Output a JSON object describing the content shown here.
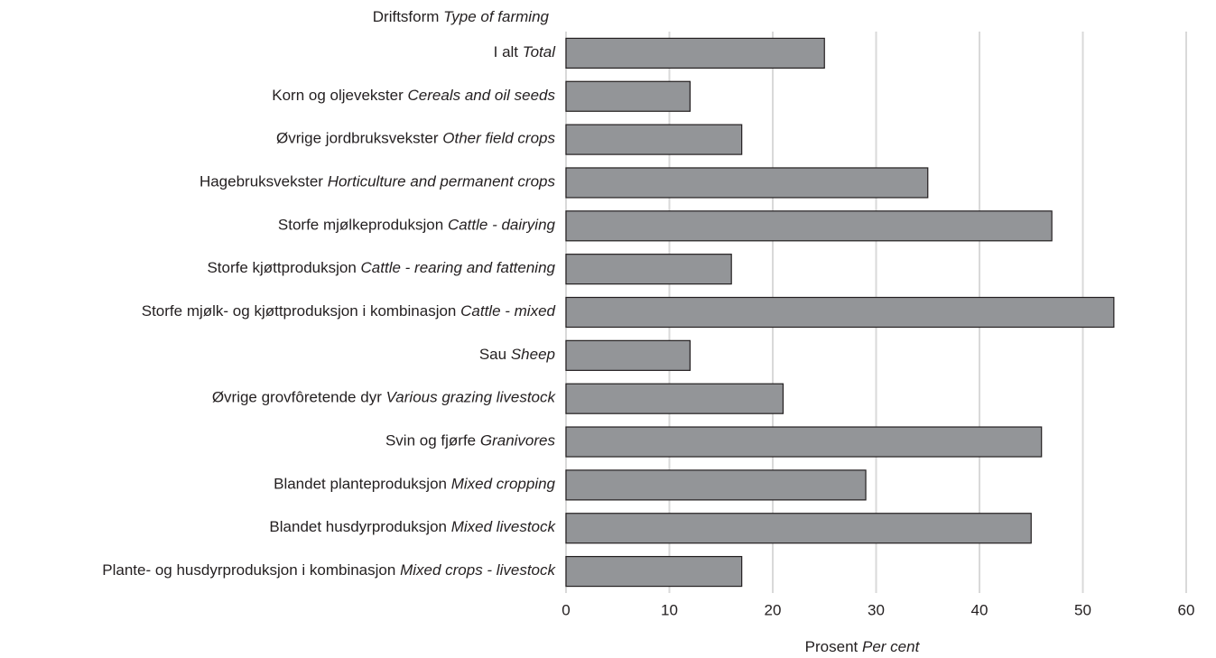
{
  "chart_data": {
    "type": "barh",
    "title": {
      "label": "Driftsform",
      "translation": "Type of farming"
    },
    "xlabel": {
      "label": "Prosent",
      "translation": "Per cent"
    },
    "categories": [
      {
        "label": "I alt",
        "translation": "Total"
      },
      {
        "label": "Korn og oljevekster",
        "translation": "Cereals and oil seeds"
      },
      {
        "label": "Øvrige jordbruksvekster",
        "translation": "Other field crops"
      },
      {
        "label": "Hagebruksvekster",
        "translation": "Horticulture and permanent crops"
      },
      {
        "label": "Storfe mjølkeproduksjon",
        "translation": "Cattle - dairying"
      },
      {
        "label": "Storfe kjøttproduksjon",
        "translation": "Cattle - rearing and fattening"
      },
      {
        "label": "Storfe mjølk- og kjøttproduksjon i kombinasjon",
        "translation": "Cattle - mixed"
      },
      {
        "label": "Sau",
        "translation": "Sheep"
      },
      {
        "label": "Øvrige grovfôretende dyr",
        "translation": "Various grazing livestock"
      },
      {
        "label": "Svin og fjørfe",
        "translation": "Granivores"
      },
      {
        "label": "Blandet planteproduksjon",
        "translation": "Mixed cropping"
      },
      {
        "label": "Blandet husdyrproduksjon",
        "translation": "Mixed livestock"
      },
      {
        "label": "Plante- og husdyrproduksjon i kombinasjon",
        "translation": "Mixed crops - livestock"
      }
    ],
    "values": [
      25,
      12,
      17,
      35,
      47,
      16,
      53,
      12,
      21,
      46,
      29,
      45,
      17
    ],
    "color": "#939598",
    "xlim": [
      0,
      60
    ],
    "xticks": [
      0,
      10,
      20,
      30,
      40,
      50,
      60
    ],
    "grid": true
  }
}
